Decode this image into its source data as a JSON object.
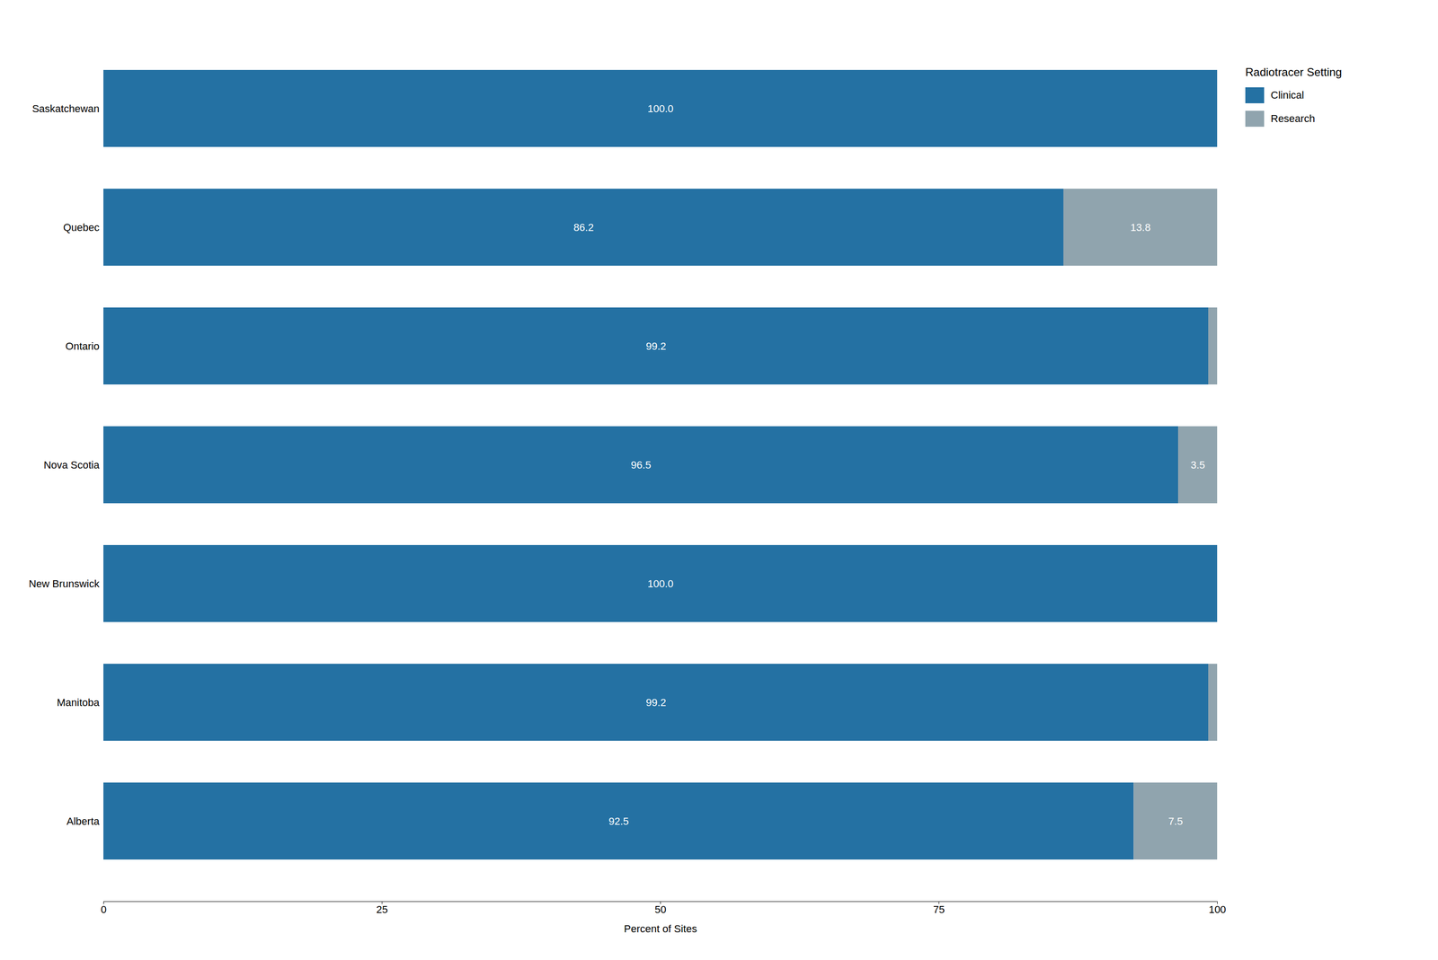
{
  "chart_data": {
    "type": "bar",
    "orientation": "horizontal",
    "stacked": true,
    "categories": [
      "Alberta",
      "Manitoba",
      "New Brunswick",
      "Nova Scotia",
      "Ontario",
      "Quebec",
      "Saskatchewan"
    ],
    "series": [
      {
        "name": "Clinical",
        "color": "#2471a3",
        "values": [
          92.5,
          99.2,
          100.0,
          96.5,
          99.2,
          86.2,
          100.0
        ],
        "value_labels": [
          "92.5",
          "99.2",
          "100.0",
          "96.5",
          "99.2",
          "86.2",
          "100.0"
        ]
      },
      {
        "name": "Research",
        "color": "#90a4ae",
        "values": [
          7.5,
          0.8,
          0.0,
          3.5,
          0.8,
          13.8,
          0.0
        ],
        "value_labels": [
          "7.5",
          null,
          null,
          "3.5",
          null,
          "13.8",
          null
        ]
      }
    ],
    "xlabel": "Percent of Sites",
    "legend_title": "Radiotracer Setting",
    "legend": "right",
    "xlim": [
      0,
      100
    ],
    "xticks": [
      0,
      25,
      50,
      75,
      100
    ],
    "grid": false,
    "data_labels": true
  }
}
